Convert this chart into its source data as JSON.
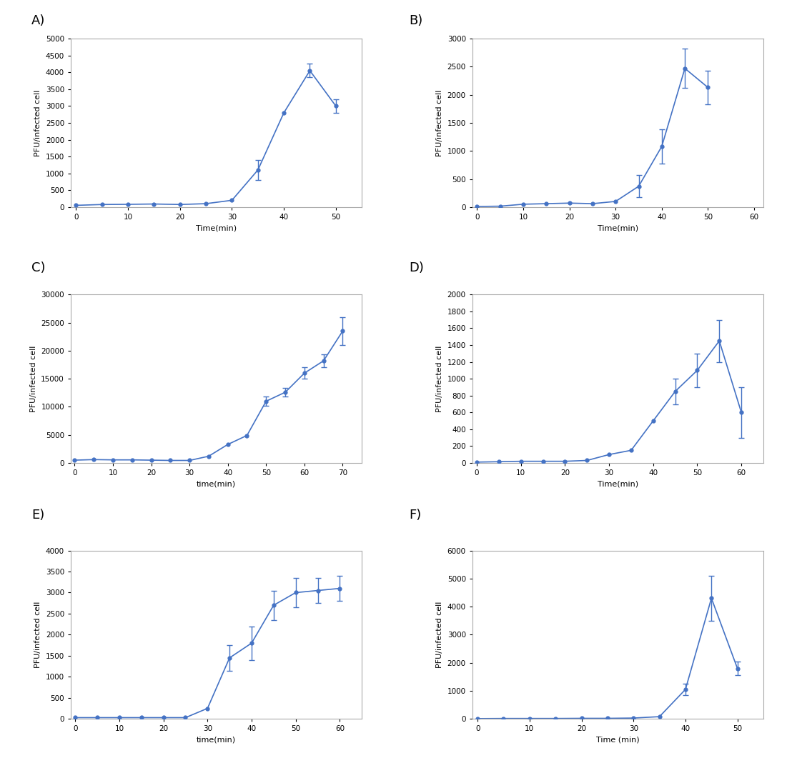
{
  "panels": [
    {
      "label": "A)",
      "xlabel": "Time(min)",
      "ylabel": "PFU/infected cell",
      "x": [
        0,
        5,
        10,
        15,
        20,
        25,
        30,
        35,
        40,
        45,
        50
      ],
      "y": [
        50,
        75,
        80,
        90,
        75,
        100,
        200,
        1100,
        2800,
        4050,
        3000
      ],
      "yerr": [
        0,
        0,
        0,
        0,
        0,
        0,
        0,
        300,
        0,
        200,
        200
      ],
      "ylim": [
        0,
        5000
      ],
      "xlim": [
        -1,
        55
      ],
      "yticks": [
        0,
        500,
        1000,
        1500,
        2000,
        2500,
        3000,
        3500,
        4000,
        4500,
        5000
      ],
      "xticks": [
        0,
        10,
        20,
        30,
        40,
        50
      ]
    },
    {
      "label": "B)",
      "xlabel": "Time(min)",
      "ylabel": "PFU/infected cell",
      "x": [
        0,
        5,
        10,
        15,
        20,
        25,
        30,
        35,
        40,
        45,
        50
      ],
      "y": [
        10,
        15,
        50,
        60,
        70,
        60,
        100,
        370,
        1080,
        2470,
        2130
      ],
      "yerr": [
        0,
        0,
        0,
        0,
        0,
        0,
        0,
        200,
        300,
        350,
        300
      ],
      "ylim": [
        0,
        3000
      ],
      "xlim": [
        -1,
        62
      ],
      "yticks": [
        0,
        500,
        1000,
        1500,
        2000,
        2500,
        3000
      ],
      "xticks": [
        0,
        10,
        20,
        30,
        40,
        50,
        60
      ]
    },
    {
      "label": "C)",
      "xlabel": "time(min)",
      "ylabel": "PFU/infected cell",
      "x": [
        0,
        5,
        10,
        15,
        20,
        25,
        30,
        35,
        40,
        45,
        50,
        55,
        60,
        65,
        70
      ],
      "y": [
        500,
        600,
        550,
        550,
        500,
        450,
        450,
        1200,
        3300,
        4900,
        11000,
        12600,
        16000,
        18200,
        23500
      ],
      "yerr": [
        0,
        0,
        0,
        0,
        0,
        0,
        0,
        0,
        0,
        0,
        800,
        800,
        1000,
        1200,
        2500
      ],
      "ylim": [
        0,
        30000
      ],
      "xlim": [
        -1,
        75
      ],
      "yticks": [
        0,
        5000,
        10000,
        15000,
        20000,
        25000,
        30000
      ],
      "xticks": [
        0,
        10,
        20,
        30,
        40,
        50,
        60,
        70
      ]
    },
    {
      "label": "D)",
      "xlabel": "Time(min)",
      "ylabel": "PFU/infected cell",
      "x": [
        0,
        5,
        10,
        15,
        20,
        25,
        30,
        35,
        40,
        45,
        50,
        55,
        60
      ],
      "y": [
        10,
        15,
        20,
        20,
        20,
        30,
        100,
        150,
        500,
        850,
        1100,
        1450,
        600
      ],
      "yerr": [
        0,
        0,
        0,
        0,
        0,
        0,
        0,
        0,
        0,
        150,
        200,
        250,
        300
      ],
      "ylim": [
        0,
        2000
      ],
      "xlim": [
        -1,
        65
      ],
      "yticks": [
        0,
        200,
        400,
        600,
        800,
        1000,
        1200,
        1400,
        1600,
        1800,
        2000
      ],
      "xticks": [
        0,
        10,
        20,
        30,
        40,
        50,
        60
      ]
    },
    {
      "label": "E)",
      "xlabel": "time(min)",
      "ylabel": "PFU/infected cell",
      "x": [
        0,
        5,
        10,
        15,
        20,
        25,
        30,
        35,
        40,
        45,
        50,
        55,
        60
      ],
      "y": [
        30,
        30,
        30,
        30,
        30,
        30,
        250,
        1450,
        1800,
        2700,
        3000,
        3050,
        3100
      ],
      "yerr": [
        0,
        0,
        0,
        0,
        0,
        0,
        0,
        300,
        400,
        350,
        350,
        300,
        300
      ],
      "ylim": [
        0,
        4000
      ],
      "xlim": [
        -1,
        65
      ],
      "yticks": [
        0,
        500,
        1000,
        1500,
        2000,
        2500,
        3000,
        3500,
        4000
      ],
      "xticks": [
        0,
        10,
        20,
        30,
        40,
        50,
        60
      ]
    },
    {
      "label": "F)",
      "xlabel": "Time (min)",
      "ylabel": "PFU/infected cell",
      "x": [
        0,
        5,
        10,
        15,
        20,
        25,
        30,
        35,
        40,
        45,
        50
      ],
      "y": [
        10,
        15,
        15,
        15,
        20,
        20,
        30,
        80,
        1050,
        4300,
        1800
      ],
      "yerr": [
        0,
        0,
        0,
        0,
        0,
        0,
        0,
        0,
        200,
        800,
        250
      ],
      "ylim": [
        0,
        6000
      ],
      "xlim": [
        -1,
        55
      ],
      "yticks": [
        0,
        1000,
        2000,
        3000,
        4000,
        5000,
        6000
      ],
      "xticks": [
        0,
        10,
        20,
        30,
        40,
        50
      ]
    }
  ],
  "line_color": "#4472C4",
  "marker": "o",
  "markersize": 3.5,
  "linewidth": 1.2,
  "capsize": 3,
  "ecolor": "#4472C4",
  "elinewidth": 1,
  "bg_color": "#ffffff",
  "plot_bg_color": "#ffffff",
  "label_fontsize": 8,
  "tick_fontsize": 7.5,
  "panel_label_fontsize": 13
}
